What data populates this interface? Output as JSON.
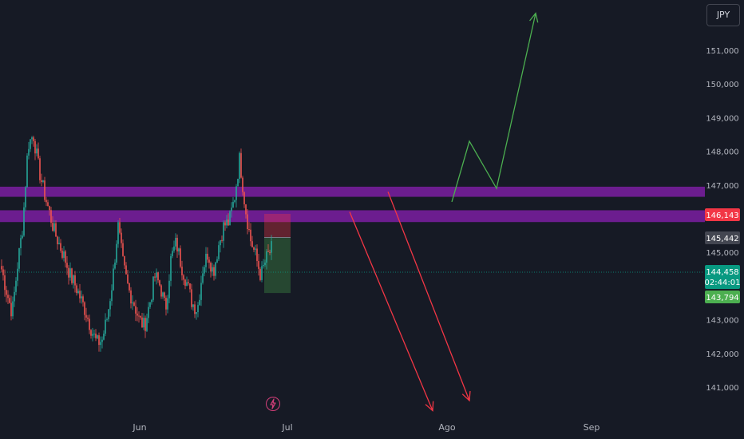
{
  "currency_selector": {
    "label": "JPY"
  },
  "price_axis": {
    "ticks": [
      "151,000",
      "150,000",
      "149,000",
      "148,000",
      "147,000",
      "145,000",
      "143,000",
      "142,000",
      "141,000"
    ],
    "tick_values": [
      151000,
      150000,
      149000,
      148000,
      147000,
      145000,
      143000,
      142000,
      141000
    ]
  },
  "time_axis": {
    "labels": [
      "Jun",
      "Jul",
      "Ago",
      "Sep"
    ]
  },
  "price_tags": {
    "sell_zone": {
      "value": "146,143",
      "color": "#f23645"
    },
    "entry": {
      "value": "145,442",
      "color": "#434651"
    },
    "last_price": {
      "value": "144,458",
      "countdown": "02:44:01",
      "color": "#089981"
    },
    "buy_zone": {
      "value": "143,794",
      "color": "#4caf50"
    }
  },
  "colors": {
    "background": "#161a25",
    "candle_up": "#26a69a",
    "candle_down": "#ef5350",
    "zone": "#7b1fa2",
    "arrow_up": "#4caf50",
    "arrow_down": "#f23645"
  },
  "icons": {
    "alert": "lightning-icon"
  },
  "chart_data": {
    "type": "candlestick",
    "title": "",
    "xlabel": "",
    "ylabel": "",
    "ylim": [
      140500,
      152400
    ],
    "x_ticks": [
      "Jun",
      "Jul",
      "Ago",
      "Sep"
    ],
    "candles_close_path": [
      144500,
      143800,
      143200,
      144600,
      145800,
      148200,
      148500,
      147500,
      146800,
      146200,
      145600,
      145200,
      144800,
      144300,
      144000,
      143600,
      143200,
      142700,
      142300,
      142400,
      143100,
      144200,
      145800,
      144600,
      143900,
      143500,
      143000,
      142800,
      143500,
      144300,
      144000,
      143300,
      144800,
      145300,
      144600,
      144100,
      143500,
      143300,
      144500,
      145000,
      144400,
      145200,
      145800,
      145900,
      146600,
      147800,
      146400,
      145400,
      144900,
      144300,
      144800,
      145100
    ],
    "zones": [
      {
        "name": "upper-zone",
        "low": 146650,
        "high": 146950
      },
      {
        "name": "lower-zone",
        "low": 145900,
        "high": 146250
      }
    ],
    "position_box": {
      "stop": 146143,
      "entry": 145442,
      "target": 143794
    },
    "projections": [
      {
        "name": "bull-path",
        "points": [
          [
            566,
            146500
          ],
          [
            588,
            148300
          ],
          [
            622,
            146900
          ],
          [
            671,
            152100
          ]
        ]
      },
      {
        "name": "bear-path-1",
        "points": [
          [
            438,
            146200
          ],
          [
            542,
            140300
          ]
        ]
      },
      {
        "name": "bear-path-2",
        "points": [
          [
            486,
            146800
          ],
          [
            588,
            140600
          ]
        ]
      }
    ],
    "last_price": 144458
  }
}
